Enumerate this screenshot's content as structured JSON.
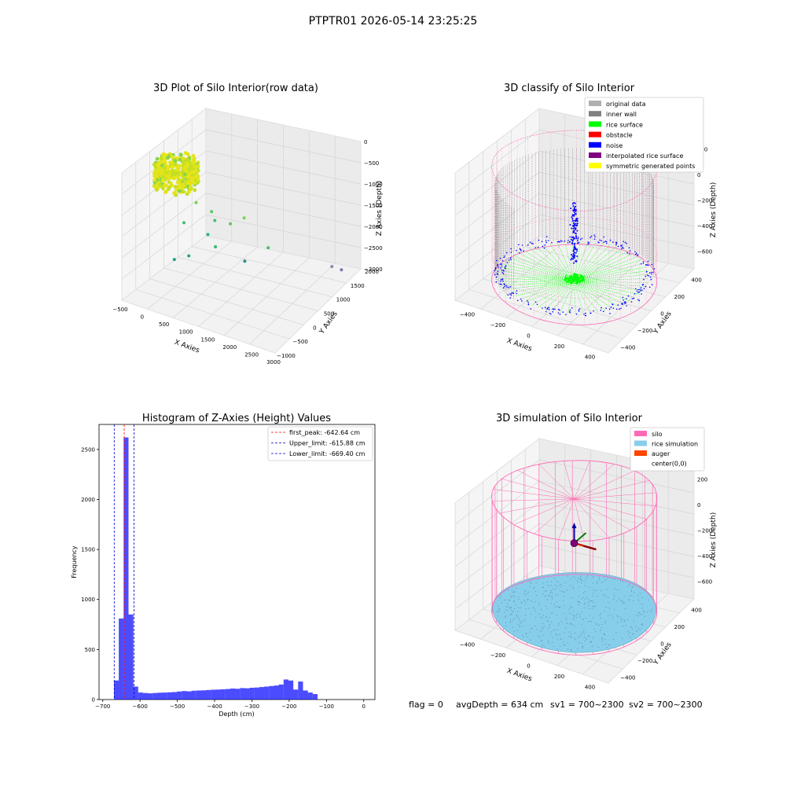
{
  "figure": {
    "suptitle": "PTPTR01 2026-05-14 23:25:25",
    "footer": {
      "flag": "flag = 0",
      "avg_depth": "avgDepth = 634 cm",
      "sv1": "sv1 = 700~2300",
      "sv2": "sv2 = 700~2300"
    }
  },
  "chart_data": [
    {
      "type": "scatter",
      "projection": "3d",
      "title": "3D Plot of Silo Interior(row data)",
      "xlabel": "X Axies",
      "ylabel": "Y Axies",
      "zlabel": "Z Axies (Depth)",
      "x_ticks": [
        "−500",
        "0",
        "500",
        "1000",
        "1500",
        "2000",
        "2500",
        "3000"
      ],
      "y_ticks": [
        "−1000",
        "−500",
        "0",
        "500",
        "1000",
        "1500",
        "2000"
      ],
      "z_ticks": [
        "0",
        "−500",
        "−1000",
        "−1500",
        "−2000",
        "−2500",
        "−3000"
      ],
      "xlim": [
        -600,
        3000
      ],
      "ylim": [
        -1100,
        2100
      ],
      "zlim": [
        -3400,
        0
      ],
      "colormap": "viridis",
      "dense_cluster": {
        "x_range": [
          -450,
          450
        ],
        "y_range": [
          -450,
          450
        ],
        "z_range": [
          -700,
          -100
        ]
      },
      "outliers": [
        {
          "x": 400,
          "y": 100,
          "z": -1100
        },
        {
          "x": 700,
          "y": 200,
          "z": -1300
        },
        {
          "x": 900,
          "y": 0,
          "z": -1350
        },
        {
          "x": 1200,
          "y": 100,
          "z": -1400
        },
        {
          "x": 1400,
          "y": 300,
          "z": -1300
        },
        {
          "x": 300,
          "y": -200,
          "z": -1500
        },
        {
          "x": 800,
          "y": -100,
          "z": -1700
        },
        {
          "x": 1100,
          "y": -300,
          "z": -1800
        },
        {
          "x": 600,
          "y": -500,
          "z": -2100
        },
        {
          "x": 1600,
          "y": 0,
          "z": -2200
        },
        {
          "x": 200,
          "y": -400,
          "z": -2400
        },
        {
          "x": 1900,
          "y": 400,
          "z": -2000
        },
        {
          "x": 2700,
          "y": 1500,
          "z": -3000
        },
        {
          "x": 2800,
          "y": 1700,
          "z": -3200
        }
      ]
    },
    {
      "type": "scatter",
      "projection": "3d",
      "title": "3D classify of Silo Interior",
      "xlabel": "X Axies",
      "ylabel": "Y Axies",
      "zlabel": "Z Axies (Depth)",
      "x_ticks": [
        "−400",
        "−200",
        "0",
        "200",
        "400"
      ],
      "y_ticks": [
        "−400",
        "−200",
        "0",
        "200",
        "400"
      ],
      "z_ticks": [
        "200",
        "0",
        "−200",
        "−400",
        "−600"
      ],
      "xlim": [
        -500,
        500
      ],
      "ylim": [
        -500,
        500
      ],
      "zlim": [
        -700,
        250
      ],
      "legend_position": "upper-right",
      "legend": [
        {
          "label": "original data",
          "color": "#b0b0b0"
        },
        {
          "label": "inner wall",
          "color": "#808080"
        },
        {
          "label": "rice surface",
          "color": "#00ff00"
        },
        {
          "label": "obstacle",
          "color": "#ff0000"
        },
        {
          "label": "noise",
          "color": "#0000ff"
        },
        {
          "label": "interpolated rice surface",
          "color": "#800080"
        },
        {
          "label": "symmetric generated points",
          "color": "#ffff00"
        }
      ],
      "silo_radius": 470,
      "silo_top": 200,
      "silo_bottom": -650,
      "rice_surface_depth": -640,
      "cylinder_color": "#ff69b4",
      "noise_cluster": {
        "x": 0,
        "y": 0,
        "z_range": [
          -500,
          -50
        ]
      }
    },
    {
      "type": "bar",
      "title": "Histogram of Z-Axies (Height) Values",
      "xlabel": "Depth (cm)",
      "ylabel": "Frequency",
      "xlim": [
        -710,
        30
      ],
      "ylim": [
        0,
        2750
      ],
      "x_ticks": [
        -700,
        -600,
        -500,
        -400,
        -300,
        -200,
        -100,
        0
      ],
      "y_ticks": [
        0,
        500,
        1000,
        1500,
        2000,
        2500
      ],
      "bar_color": "#0000ff",
      "bar_opacity": 0.7,
      "bin_start": -670,
      "bin_width": 13,
      "values": [
        190,
        810,
        2620,
        850,
        130,
        70,
        65,
        62,
        65,
        68,
        70,
        72,
        75,
        80,
        85,
        82,
        88,
        90,
        92,
        95,
        98,
        100,
        102,
        105,
        110,
        108,
        115,
        112,
        118,
        120,
        125,
        130,
        135,
        140,
        150,
        200,
        190,
        100,
        180,
        90,
        70,
        55,
        0
      ],
      "vlines": [
        {
          "label": "first_peak: -642.64 cm",
          "x": -642.64,
          "color": "#ff0000"
        },
        {
          "label": "Upper_limit: -615.88 cm",
          "x": -615.88,
          "color": "#0000cc"
        },
        {
          "label": "Lower_limit: -669.40 cm",
          "x": -669.4,
          "color": "#0000cc"
        }
      ],
      "legend_position": "upper-right"
    },
    {
      "type": "scatter",
      "projection": "3d",
      "title": "3D simulation of Silo Interior",
      "xlabel": "X Axies",
      "ylabel": "Y Axies",
      "zlabel": "Z Axies (Depth)",
      "x_ticks": [
        "−400",
        "−200",
        "0",
        "200",
        "400"
      ],
      "y_ticks": [
        "−400",
        "−200",
        "0",
        "200",
        "400"
      ],
      "z_ticks": [
        "200",
        "0",
        "−200",
        "−400",
        "−600"
      ],
      "xlim": [
        -500,
        500
      ],
      "ylim": [
        -500,
        500
      ],
      "zlim": [
        -700,
        250
      ],
      "legend_position": "upper-right",
      "legend": [
        {
          "label": "silo",
          "color": "#ff69b4"
        },
        {
          "label": "rice simulation",
          "color": "#87ceeb"
        },
        {
          "label": "auger",
          "color": "#ff4500"
        },
        {
          "label": "center(0,0)",
          "color": "#ffffff"
        }
      ],
      "silo_radius": 470,
      "silo_top": 200,
      "silo_bottom": -650,
      "rice_level": -634
    }
  ]
}
